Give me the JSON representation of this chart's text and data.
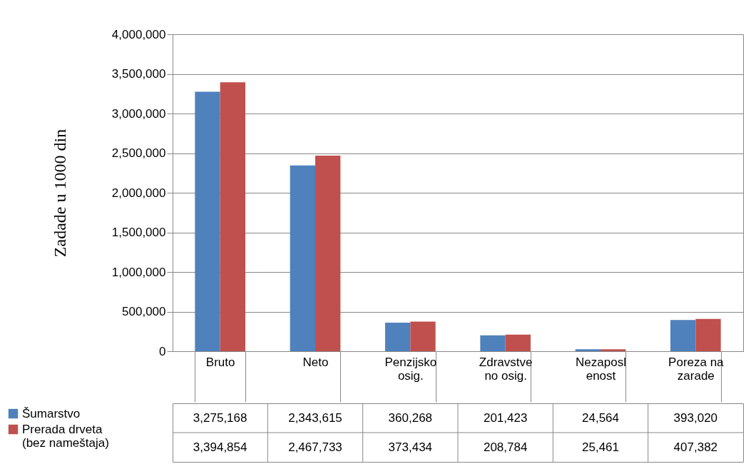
{
  "chart_data": {
    "type": "bar",
    "ylabel": "Zadade u 1000 din",
    "categories": [
      "Bruto",
      "Neto",
      "Penzijsko\nosig.",
      "Zdravstve\nno  osig.",
      "Nezaposl\nenost",
      "Poreza na\nzarade"
    ],
    "series": [
      {
        "name": "Šumarstvo",
        "color": "#4f81bd",
        "values": [
          3275168,
          2343615,
          360268,
          201423,
          24564,
          393020
        ],
        "value_labels": [
          "3,275,168",
          "2,343,615",
          "360,268",
          "201,423",
          "24,564",
          "393,020"
        ]
      },
      {
        "name": "Prerada drveta\n(bez nameštaja)",
        "color": "#c0504d",
        "values": [
          3394854,
          2467733,
          373434,
          208784,
          25461,
          407382
        ],
        "value_labels": [
          "3,394,854",
          "2,467,733",
          "373,434",
          "208,784",
          "25,461",
          "407,382"
        ]
      }
    ],
    "ylim": [
      0,
      4000000
    ],
    "yticks": [
      {
        "value": 0,
        "label": "0"
      },
      {
        "value": 500000,
        "label": "500,000"
      },
      {
        "value": 1000000,
        "label": "1,000,000"
      },
      {
        "value": 1500000,
        "label": "1,500,000"
      },
      {
        "value": 2000000,
        "label": "2,000,000"
      },
      {
        "value": 2500000,
        "label": "2,500,000"
      },
      {
        "value": 3000000,
        "label": "3,000,000"
      },
      {
        "value": 3500000,
        "label": "3,500,000"
      },
      {
        "value": 4000000,
        "label": "4,000,000"
      }
    ],
    "grid": "y",
    "legend": "bottom left"
  }
}
